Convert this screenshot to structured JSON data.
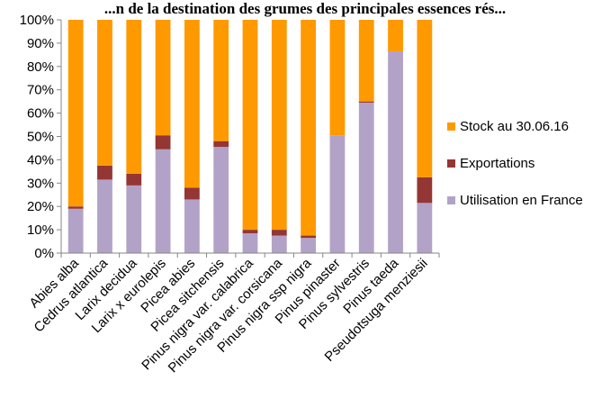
{
  "chart_data": {
    "type": "bar",
    "stacked": true,
    "normalized": true,
    "title": "...n de la destination des grumes des principales essences rés...",
    "categories": [
      "Abies alba",
      "Cedrus atlantica",
      "Larix decidua",
      "Larix x eurolepis",
      "Picea abies",
      "Picea sitchensis",
      "Pinus nigra var. calabrica",
      "Pinus nigra var. corsicana",
      "Pinus nigra ssp nigra",
      "Pinus pinaster",
      "Pinus sylvestris",
      "Pinus taeda",
      "Pseudotsuga menziesii"
    ],
    "series": [
      {
        "name": "Utilisation en France",
        "color": "#B3A2C7",
        "values": [
          19,
          31.5,
          29,
          44.5,
          23,
          45.5,
          8.5,
          7.5,
          6.5,
          50.5,
          64.5,
          86.5,
          21.5
        ]
      },
      {
        "name": "Exportations",
        "color": "#943634",
        "values": [
          1,
          6,
          5,
          6,
          5,
          2.5,
          1.5,
          2.5,
          1,
          0,
          0.5,
          0,
          11
        ]
      },
      {
        "name": "Stock au 30.06.16",
        "color": "#FF9900",
        "values": [
          80,
          62.5,
          66,
          49.5,
          72,
          52,
          90,
          90,
          92.5,
          49.5,
          35,
          13.5,
          67.5
        ]
      }
    ],
    "ylim": [
      0,
      100
    ],
    "yticks": [
      "0%",
      "10%",
      "20%",
      "30%",
      "40%",
      "50%",
      "60%",
      "70%",
      "80%",
      "90%",
      "100%"
    ],
    "legend_position": "right",
    "legend_order": [
      "Stock au 30.06.16",
      "Exportations",
      "Utilisation en France"
    ],
    "grid": false
  }
}
